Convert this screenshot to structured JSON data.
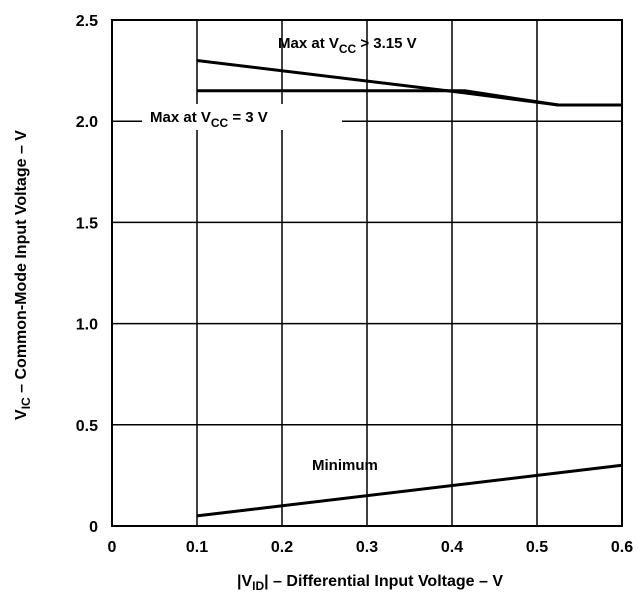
{
  "chart_data": {
    "type": "line",
    "xlabel": {
      "prefix": "|V",
      "sub": "ID",
      "suffix": "| – Differential Input Voltage – V"
    },
    "ylabel": {
      "prefix": "V",
      "sub": "IC",
      "suffix": " – Common-Mode Input Voltage – V"
    },
    "xlim": [
      0,
      0.6
    ],
    "ylim": [
      0,
      2.5
    ],
    "x_ticks": [
      0,
      0.1,
      0.2,
      0.3,
      0.4,
      0.5,
      0.6
    ],
    "x_tick_labels": [
      "0",
      "0.1",
      "0.2",
      "0.3",
      "0.4",
      "0.5",
      "0.6"
    ],
    "y_ticks": [
      0,
      0.5,
      1.0,
      1.5,
      2.0,
      2.5
    ],
    "y_tick_labels": [
      "0",
      "0.5",
      "1.0",
      "1.5",
      "2.0",
      "2.5"
    ],
    "grid": true,
    "series": [
      {
        "name": "Max at VCC > 3.15 V",
        "x": [
          0.1,
          0.415,
          0.525,
          0.6
        ],
        "y": [
          2.3,
          2.14,
          2.08,
          2.08
        ]
      },
      {
        "name": "Max at VCC = 3 V",
        "x": [
          0.1,
          0.415,
          0.525,
          0.6
        ],
        "y": [
          2.15,
          2.15,
          2.08,
          2.08
        ]
      },
      {
        "name": "Minimum",
        "x": [
          0.1,
          0.6
        ],
        "y": [
          0.05,
          0.3
        ]
      }
    ],
    "annotations": [
      {
        "id": "max315",
        "parts": [
          "Max at V",
          "CC",
          " > 3.15 V"
        ]
      },
      {
        "id": "max3",
        "parts": [
          "Max at V",
          "CC",
          " = 3 V"
        ]
      },
      {
        "id": "minimum",
        "parts": [
          "Minimum"
        ]
      }
    ]
  }
}
